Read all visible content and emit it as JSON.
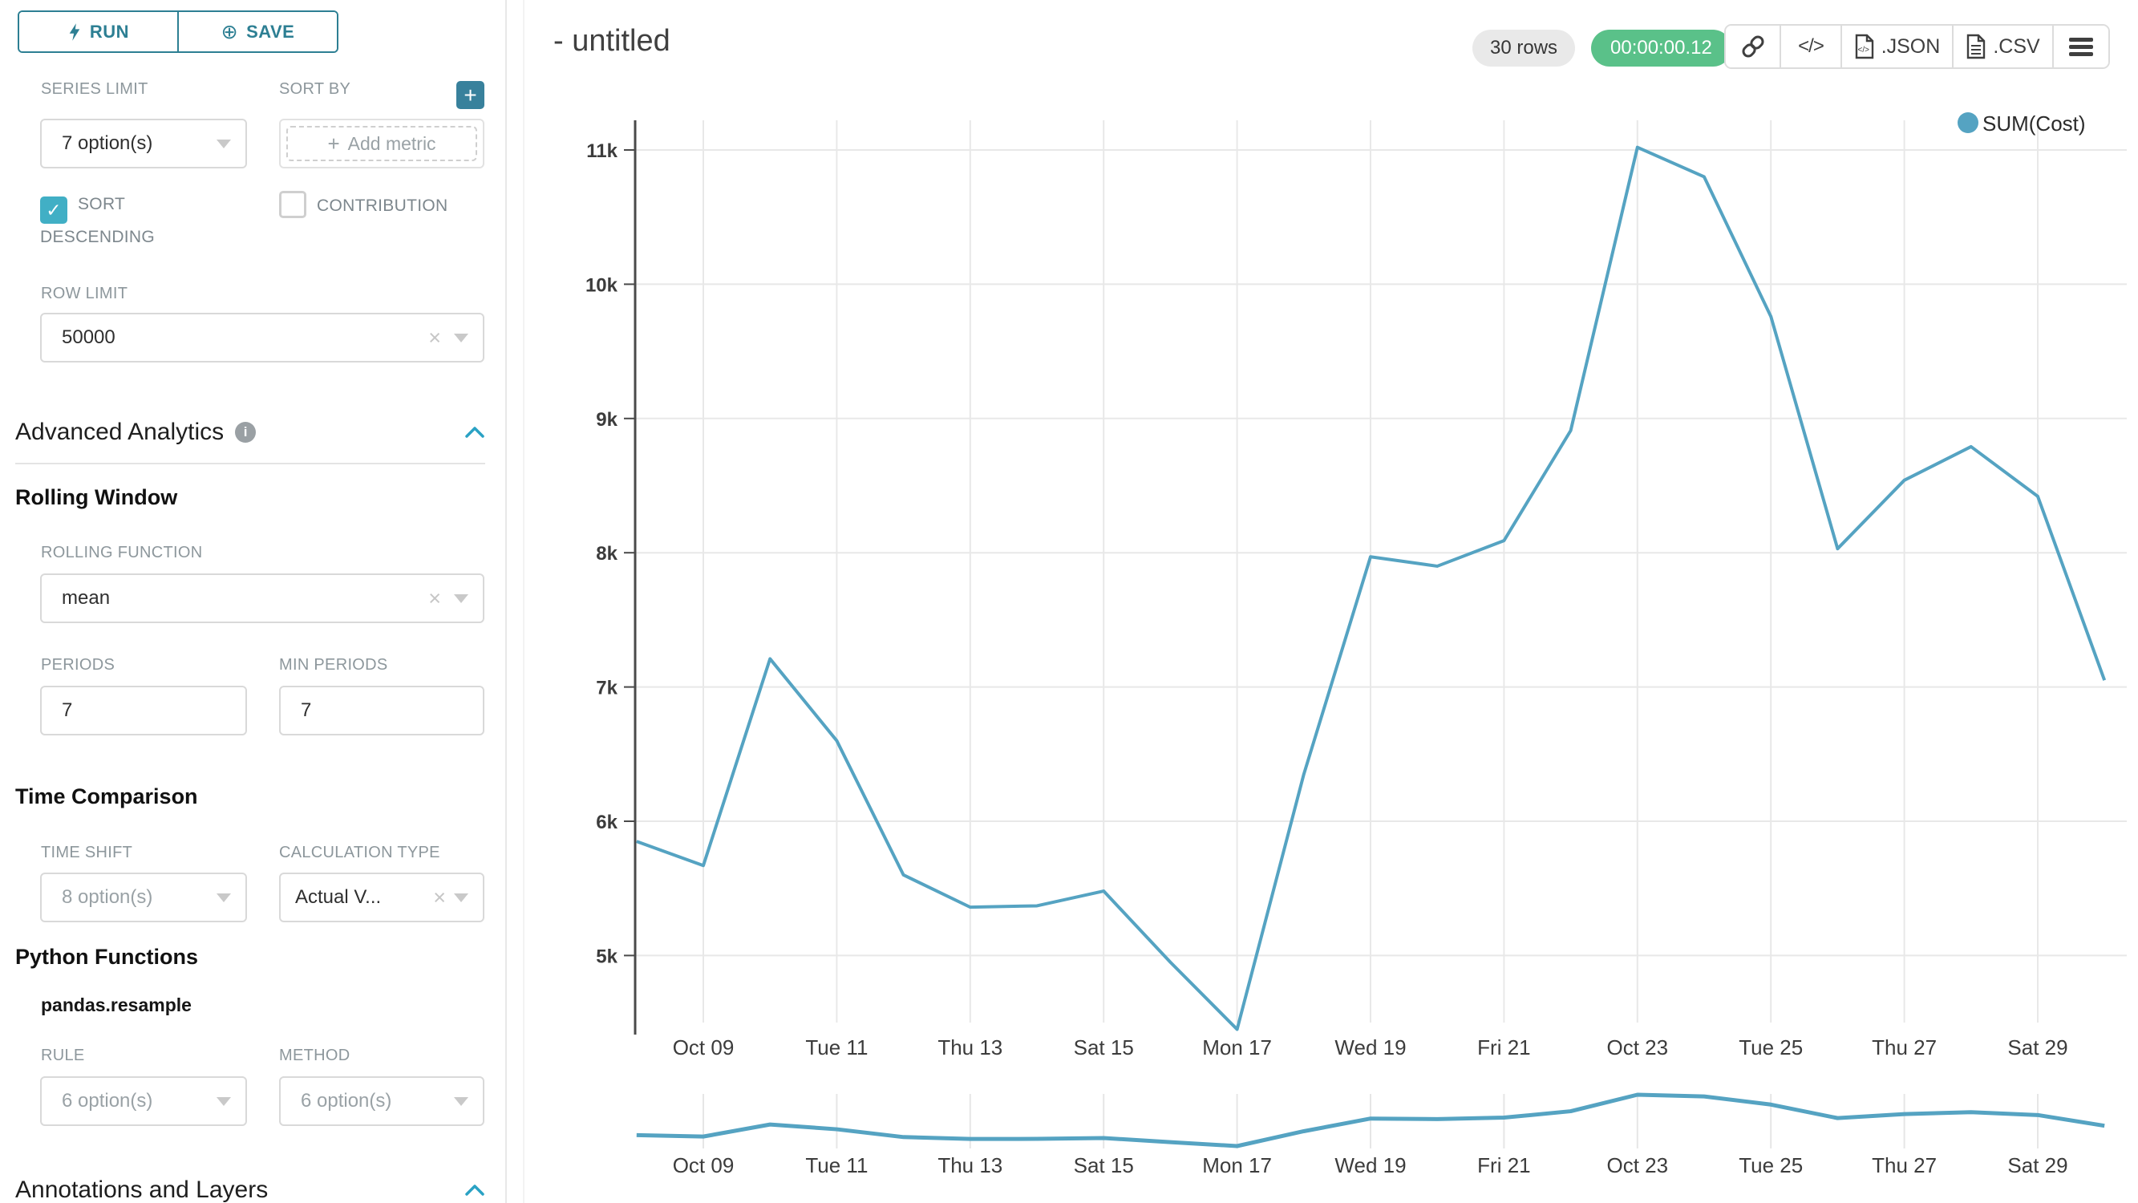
{
  "colors": {
    "accent_teal": "#2d7f93",
    "checkbox_teal": "#41afc5",
    "series_line": "#55A3C2",
    "timer_green": "#5ac189",
    "gridline": "#e8e8e8",
    "axis": "#4a4a4a"
  },
  "sidebar": {
    "run_label": "RUN",
    "save_label": "SAVE",
    "series_limit": {
      "label": "SERIES LIMIT",
      "value": "7 option(s)"
    },
    "sort_by": {
      "label": "SORT BY",
      "placeholder": "Add metric"
    },
    "sort_descending": {
      "label": "SORT DESCENDING",
      "checked": true
    },
    "contribution": {
      "label": "CONTRIBUTION",
      "checked": false
    },
    "row_limit": {
      "label": "ROW LIMIT",
      "value": "50000"
    },
    "advanced_analytics": {
      "title": "Advanced Analytics"
    },
    "rolling_window": {
      "title": "Rolling Window",
      "rolling_function": {
        "label": "ROLLING FUNCTION",
        "value": "mean"
      },
      "periods": {
        "label": "PERIODS",
        "value": "7"
      },
      "min_periods": {
        "label": "MIN PERIODS",
        "value": "7"
      }
    },
    "time_comparison": {
      "title": "Time Comparison",
      "time_shift": {
        "label": "TIME SHIFT",
        "value": "8 option(s)"
      },
      "calculation_type": {
        "label": "CALCULATION TYPE",
        "value": "Actual V..."
      }
    },
    "python_functions": {
      "title": "Python Functions",
      "subtitle": "pandas.resample",
      "rule": {
        "label": "RULE",
        "value": "6 option(s)"
      },
      "method": {
        "label": "METHOD",
        "value": "6 option(s)"
      }
    },
    "annotations": {
      "title": "Annotations and Layers"
    }
  },
  "header": {
    "title": "- untitled",
    "rows_badge": "30 rows",
    "timer": "00:00:00.12",
    "json_label": ".JSON",
    "csv_label": ".CSV"
  },
  "chart_data": {
    "type": "line",
    "title": "",
    "legend_position": "top-right",
    "grid": true,
    "legend": [
      {
        "name": "SUM(Cost)",
        "color": "#55A3C2"
      }
    ],
    "x": [
      "Oct 08",
      "Oct 09",
      "Oct 10",
      "Oct 11",
      "Oct 12",
      "Oct 13",
      "Oct 14",
      "Oct 15",
      "Oct 16",
      "Oct 17",
      "Oct 18",
      "Oct 19",
      "Oct 20",
      "Oct 21",
      "Oct 22",
      "Oct 23",
      "Oct 24",
      "Oct 25",
      "Oct 26",
      "Oct 27",
      "Oct 28",
      "Oct 29",
      "Oct 30"
    ],
    "series": [
      {
        "name": "SUM(Cost)",
        "values": [
          5850,
          5670,
          7210,
          6600,
          5600,
          5360,
          5370,
          5480,
          4950,
          4450,
          6350,
          7970,
          7900,
          8090,
          8910,
          11020,
          10800,
          9760,
          8030,
          8540,
          8790,
          8420,
          7050
        ]
      }
    ],
    "x_tick_labels": [
      "Oct 09",
      "Tue 11",
      "Thu 13",
      "Sat 15",
      "Mon 17",
      "Wed 19",
      "Fri 21",
      "Oct 23",
      "Tue 25",
      "Thu 27",
      "Sat 29"
    ],
    "y_tick_labels": [
      "11k",
      "10k",
      "9k",
      "8k",
      "7k",
      "6k",
      "5k"
    ],
    "y_tick_values": [
      11000,
      10000,
      9000,
      8000,
      7000,
      6000,
      5000
    ],
    "ylim": [
      4300,
      11200
    ],
    "has_preview_strip": true
  }
}
